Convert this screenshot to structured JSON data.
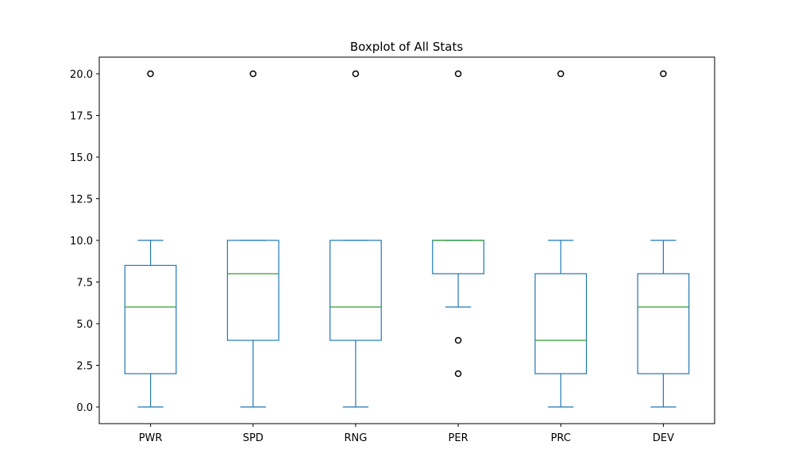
{
  "chart_data": {
    "type": "box",
    "title": "Boxplot of All Stats",
    "xlabel": "",
    "ylabel": "",
    "ylim": [
      -1,
      21
    ],
    "yticks": [
      0.0,
      2.5,
      5.0,
      7.5,
      10.0,
      12.5,
      15.0,
      17.5,
      20.0
    ],
    "ytick_labels": [
      "0.0",
      "2.5",
      "5.0",
      "7.5",
      "10.0",
      "12.5",
      "15.0",
      "17.5",
      "20.0"
    ],
    "grid": false,
    "colors": {
      "box": "#1f77b4",
      "median": "#2ca02c",
      "flier": "#000000"
    },
    "categories": [
      "PWR",
      "SPD",
      "RNG",
      "PER",
      "PRC",
      "DEV"
    ],
    "series": [
      {
        "category": "PWR",
        "whisker_low": 0,
        "q1": 2,
        "median": 6,
        "q3": 8.5,
        "whisker_high": 10,
        "outliers": [
          20
        ]
      },
      {
        "category": "SPD",
        "whisker_low": 0,
        "q1": 4,
        "median": 8,
        "q3": 10,
        "whisker_high": 10,
        "outliers": [
          20
        ]
      },
      {
        "category": "RNG",
        "whisker_low": 0,
        "q1": 4,
        "median": 6,
        "q3": 10,
        "whisker_high": 10,
        "outliers": [
          20
        ]
      },
      {
        "category": "PER",
        "whisker_low": 6,
        "q1": 8,
        "median": 10,
        "q3": 10,
        "whisker_high": 10,
        "outliers": [
          2,
          4,
          20
        ]
      },
      {
        "category": "PRC",
        "whisker_low": 0,
        "q1": 2,
        "median": 4,
        "q3": 8,
        "whisker_high": 10,
        "outliers": [
          20
        ]
      },
      {
        "category": "DEV",
        "whisker_low": 0,
        "q1": 2,
        "median": 6,
        "q3": 8,
        "whisker_high": 10,
        "outliers": [
          20
        ]
      }
    ]
  }
}
